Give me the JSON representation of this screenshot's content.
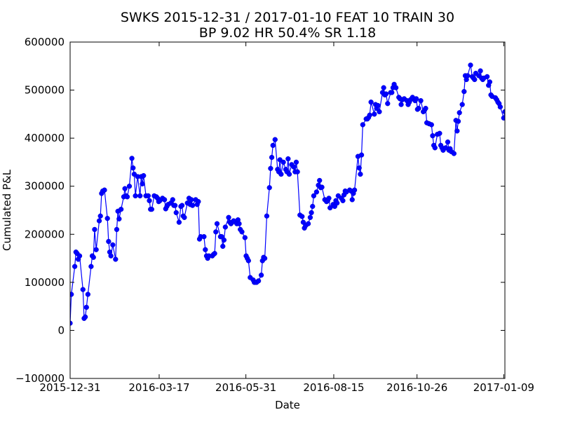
{
  "chart_data": {
    "type": "line",
    "title_line1": "SWKS 2015-12-31 / 2017-01-10 FEAT 10 TRAIN 30",
    "title_line2": "BP 9.02 HR 50.4%  SR 1.18",
    "xlabel": "Date",
    "ylabel": "Cumulated P&L",
    "ylim": [
      -100000,
      600000
    ],
    "yticks": [
      -100000,
      0,
      100000,
      200000,
      300000,
      400000,
      500000,
      600000
    ],
    "ytick_labels": [
      "−100000",
      "0",
      "100000",
      "200000",
      "300000",
      "400000",
      "500000",
      "600000"
    ],
    "xlim": [
      "2015-12-31",
      "2017-01-10"
    ],
    "xticks": [
      "2015-12-31",
      "2016-03-17",
      "2016-05-31",
      "2016-08-15",
      "2016-10-26",
      "2017-01-09"
    ],
    "grid": false,
    "line_color": "#0000ff",
    "series": [
      {
        "values": [
          15000,
          75000,
          133000,
          163000,
          160000,
          148000,
          155000,
          85000,
          25000,
          28000,
          48000,
          75000,
          133000,
          155000,
          152000,
          210000,
          168000,
          228000,
          238000,
          285000,
          290000,
          292000,
          233000,
          185000,
          163000,
          155000,
          178000,
          148000,
          210000,
          248000,
          232000,
          252000,
          278000,
          295000,
          280000,
          278000,
          300000,
          358000,
          338000,
          325000,
          280000,
          320000,
          280000,
          320000,
          305000,
          322000,
          280000,
          280000,
          270000,
          252000,
          252000,
          280000,
          278000,
          275000,
          268000,
          270000,
          275000,
          272000,
          253000,
          258000,
          262000,
          265000,
          272000,
          260000,
          260000,
          245000,
          225000,
          258000,
          260000,
          238000,
          235000,
          265000,
          275000,
          262000,
          272000,
          260000,
          272000,
          262000,
          268000,
          190000,
          195000,
          195000,
          168000,
          155000,
          150000,
          155000,
          155000,
          158000,
          160000,
          205000,
          222000,
          195000,
          195000,
          175000,
          188000,
          215000,
          235000,
          225000,
          222000,
          225000,
          228000,
          222000,
          230000,
          222000,
          210000,
          205000,
          193000,
          155000,
          150000,
          145000,
          110000,
          105000,
          100000,
          100000,
          100000,
          103000,
          115000,
          145000,
          152000,
          150000,
          238000,
          297000,
          337000,
          360000,
          385000,
          397000,
          335000,
          330000,
          355000,
          325000,
          350000,
          335000,
          330000,
          357000,
          325000,
          345000,
          340000,
          330000,
          350000,
          330000,
          240000,
          237000,
          225000,
          213000,
          218000,
          222000,
          235000,
          245000,
          258000,
          280000,
          288000,
          302000,
          312000,
          297000,
          298000,
          272000,
          268000,
          270000,
          275000,
          255000,
          262000,
          258000,
          270000,
          265000,
          280000,
          275000,
          270000,
          282000,
          290000,
          288000,
          292000,
          290000,
          272000,
          285000,
          292000,
          362000,
          338000,
          325000,
          365000,
          428000,
          440000,
          440000,
          443000,
          448000,
          475000,
          450000,
          470000,
          462000,
          468000,
          455000,
          495000,
          505000,
          490000,
          492000,
          472000,
          495000,
          495000,
          505000,
          512000,
          505000,
          485000,
          482000,
          470000,
          480000,
          482000,
          478000,
          470000,
          475000,
          480000,
          485000,
          478000,
          482000,
          460000,
          462000,
          478000,
          455000,
          458000,
          462000,
          432000,
          430000,
          428000,
          405000,
          385000,
          380000,
          408000,
          410000,
          385000,
          380000,
          375000,
          380000,
          392000,
          375000,
          378000,
          372000,
          368000,
          437000,
          415000,
          435000,
          453000,
          470000,
          497000,
          530000,
          522000,
          530000,
          552000,
          528000,
          525000,
          522000,
          535000,
          530000,
          540000,
          525000,
          522000,
          525000,
          528000,
          510000,
          517000,
          490000,
          487000,
          484000,
          480000,
          475000,
          472000,
          465000,
          442000,
          455000
        ]
      }
    ]
  }
}
